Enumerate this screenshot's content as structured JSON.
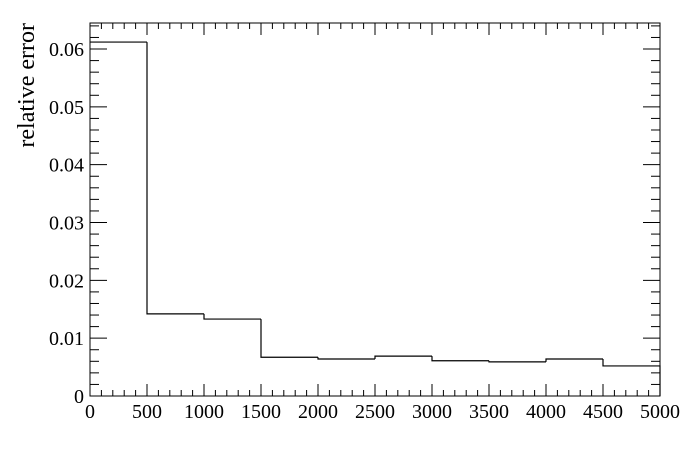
{
  "chart_data": {
    "type": "histogram",
    "title": "",
    "xlabel": "",
    "ylabel": "relative error",
    "xlim": [
      0,
      5000
    ],
    "ylim": [
      0,
      0.0645
    ],
    "grid": false,
    "legend": "none",
    "line_color": "#000000",
    "bin_edges": [
      0,
      500,
      1000,
      1500,
      2000,
      2500,
      3000,
      3500,
      4000,
      4500,
      5000
    ],
    "values": [
      0.0612,
      0.0142,
      0.0133,
      0.0067,
      0.0064,
      0.0069,
      0.0061,
      0.0059,
      0.0064,
      0.0052
    ],
    "x_ticks": [
      0,
      500,
      1000,
      1500,
      2000,
      2500,
      3000,
      3500,
      4000,
      4500,
      5000
    ],
    "x_tick_labels": [
      "0",
      "500",
      "1000",
      "1500",
      "2000",
      "2500",
      "3000",
      "3500",
      "4000",
      "4500",
      "5000"
    ],
    "y_ticks": [
      0,
      0.01,
      0.02,
      0.03,
      0.04,
      0.05,
      0.06
    ],
    "y_tick_labels": [
      "0",
      "0.01",
      "0.02",
      "0.03",
      "0.04",
      "0.05",
      "0.06"
    ]
  }
}
